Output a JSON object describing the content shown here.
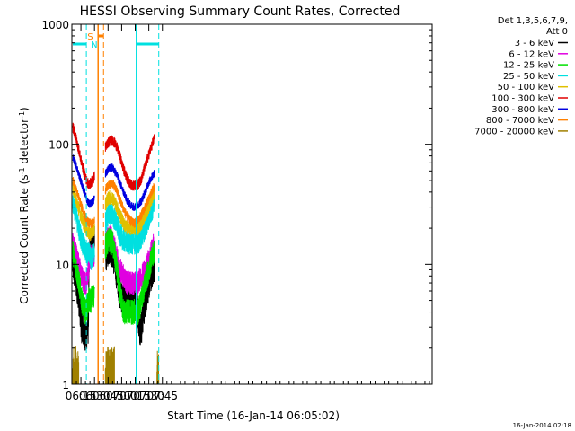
{
  "chart_data": {
    "type": "line",
    "title": "HESSI Observing Summary Count Rates, Corrected",
    "xlabel": "Start Time (16-Jan-14 06:05:02)",
    "ylabel_main": "Corrected Count Rate (s",
    "ylabel_exp1": "-1",
    "ylabel_mid": " detector",
    "ylabel_exp2": "-1",
    "ylabel_end": ")",
    "yscale": "log",
    "ylim": [
      1,
      1000
    ],
    "xlim": [
      365,
      763
    ],
    "xticks": [
      {
        "t": 375,
        "label": "06:15"
      },
      {
        "t": 390,
        "label": "06:30"
      },
      {
        "t": 405,
        "label": "06:45"
      },
      {
        "t": 420,
        "label": "07:00"
      },
      {
        "t": 435,
        "label": "07:15"
      },
      {
        "t": 450,
        "label": "07:30"
      },
      {
        "t": 465,
        "label": "07:45"
      }
    ],
    "yticks": [
      {
        "v": 1,
        "label": "1"
      },
      {
        "v": 10,
        "label": "10"
      },
      {
        "v": 100,
        "label": "100"
      },
      {
        "v": 1000,
        "label": "1000"
      }
    ],
    "legend_header": [
      "Det 1,3,5,6,7,9,",
      "Att 0"
    ],
    "legend_position": "right",
    "series": [
      {
        "name": "3 - 6 keV",
        "color": "#000000",
        "noise": 0.3,
        "points": [
          [
            366,
            10
          ],
          [
            372,
            6
          ],
          [
            376,
            3
          ],
          [
            380,
            2.5
          ],
          [
            383,
            3
          ],
          [
            384.5,
            12
          ],
          [
            386,
            15
          ],
          [
            388,
            14
          ],
          [
            389,
            15
          ],
          [
            390,
            15
          ]
        ],
        "points2": [
          [
            402,
            12
          ],
          [
            406,
            14
          ],
          [
            410,
            13
          ],
          [
            414,
            9
          ],
          [
            418,
            6
          ],
          [
            422,
            5
          ],
          [
            426,
            5
          ],
          [
            430,
            5
          ],
          [
            434,
            5
          ],
          [
            436,
            5
          ],
          [
            438,
            4
          ],
          [
            440,
            3
          ],
          [
            442,
            3
          ],
          [
            444,
            4
          ],
          [
            448,
            6
          ],
          [
            452,
            8
          ],
          [
            456,
            10
          ]
        ]
      },
      {
        "name": "6 - 12 keV",
        "color": "#e000e0",
        "noise": 0.2,
        "points": [
          [
            366,
            15
          ],
          [
            370,
            12
          ],
          [
            374,
            9
          ],
          [
            378,
            7
          ],
          [
            381,
            7
          ],
          [
            384,
            10
          ],
          [
            386,
            12
          ],
          [
            388,
            12
          ],
          [
            390,
            12
          ]
        ],
        "points2": [
          [
            402,
            15
          ],
          [
            406,
            17
          ],
          [
            410,
            16
          ],
          [
            414,
            12
          ],
          [
            418,
            9
          ],
          [
            422,
            8
          ],
          [
            426,
            7
          ],
          [
            430,
            7
          ],
          [
            434,
            7
          ],
          [
            438,
            7
          ],
          [
            442,
            8
          ],
          [
            446,
            9
          ],
          [
            450,
            11
          ],
          [
            456,
            15
          ]
        ]
      },
      {
        "name": "12 - 25 keV",
        "color": "#00e000",
        "noise": 0.22,
        "points": [
          [
            366,
            13
          ],
          [
            370,
            9
          ],
          [
            373,
            7
          ],
          [
            376,
            5
          ],
          [
            380,
            4
          ],
          [
            382,
            4.5
          ],
          [
            384,
            5
          ],
          [
            386,
            5
          ],
          [
            388,
            5.5
          ],
          [
            390,
            5.5
          ]
        ],
        "points2": [
          [
            402,
            14
          ],
          [
            406,
            16
          ],
          [
            410,
            15
          ],
          [
            414,
            10
          ],
          [
            418,
            6
          ],
          [
            422,
            4
          ],
          [
            426,
            4
          ],
          [
            430,
            4
          ],
          [
            434,
            4
          ],
          [
            438,
            4
          ],
          [
            442,
            5
          ],
          [
            446,
            7
          ],
          [
            450,
            9
          ],
          [
            456,
            13
          ]
        ]
      },
      {
        "name": "25 - 50 keV",
        "color": "#00e0e0",
        "noise": 0.2,
        "points": [
          [
            366,
            34
          ],
          [
            370,
            25
          ],
          [
            374,
            18
          ],
          [
            378,
            14
          ],
          [
            382,
            12
          ],
          [
            384,
            13
          ],
          [
            386,
            11
          ],
          [
            388,
            12
          ],
          [
            390,
            13
          ]
        ],
        "points2": [
          [
            402,
            22
          ],
          [
            406,
            27
          ],
          [
            410,
            26
          ],
          [
            414,
            22
          ],
          [
            418,
            18
          ],
          [
            422,
            16
          ],
          [
            426,
            15
          ],
          [
            430,
            15
          ],
          [
            434,
            15
          ],
          [
            438,
            15
          ],
          [
            442,
            17
          ],
          [
            446,
            20
          ],
          [
            450,
            24
          ],
          [
            456,
            33
          ]
        ]
      },
      {
        "name": "50 - 100 keV",
        "color": "#e0c000",
        "noise": 0.12,
        "points": [
          [
            366,
            45
          ],
          [
            370,
            34
          ],
          [
            374,
            27
          ],
          [
            378,
            22
          ],
          [
            382,
            19
          ],
          [
            384,
            18
          ],
          [
            386,
            18
          ],
          [
            388,
            19
          ],
          [
            390,
            19
          ]
        ],
        "points2": [
          [
            402,
            32
          ],
          [
            406,
            36
          ],
          [
            410,
            36
          ],
          [
            414,
            31
          ],
          [
            418,
            26
          ],
          [
            422,
            22
          ],
          [
            426,
            20
          ],
          [
            430,
            20
          ],
          [
            434,
            20
          ],
          [
            438,
            20
          ],
          [
            442,
            22
          ],
          [
            446,
            26
          ],
          [
            450,
            30
          ],
          [
            456,
            40
          ]
        ]
      },
      {
        "name": "100 - 300 keV",
        "color": "#e00000",
        "noise": 0.09,
        "points": [
          [
            366,
            140
          ],
          [
            370,
            110
          ],
          [
            374,
            80
          ],
          [
            378,
            60
          ],
          [
            382,
            48
          ],
          [
            384,
            46
          ],
          [
            386,
            48
          ],
          [
            388,
            50
          ],
          [
            390,
            55
          ]
        ],
        "points2": [
          [
            402,
            95
          ],
          [
            406,
            105
          ],
          [
            410,
            108
          ],
          [
            414,
            98
          ],
          [
            418,
            80
          ],
          [
            422,
            62
          ],
          [
            426,
            52
          ],
          [
            430,
            46
          ],
          [
            434,
            45
          ],
          [
            438,
            46
          ],
          [
            442,
            52
          ],
          [
            446,
            66
          ],
          [
            450,
            82
          ],
          [
            456,
            112
          ]
        ]
      },
      {
        "name": "300 - 800 keV",
        "color": "#0000e0",
        "noise": 0.07,
        "points": [
          [
            366,
            78
          ],
          [
            370,
            66
          ],
          [
            374,
            52
          ],
          [
            378,
            42
          ],
          [
            382,
            34
          ],
          [
            384,
            32
          ],
          [
            386,
            32
          ],
          [
            388,
            33
          ],
          [
            390,
            35
          ]
        ],
        "points2": [
          [
            402,
            57
          ],
          [
            406,
            63
          ],
          [
            410,
            64
          ],
          [
            414,
            57
          ],
          [
            418,
            48
          ],
          [
            422,
            40
          ],
          [
            426,
            34
          ],
          [
            430,
            31
          ],
          [
            434,
            30
          ],
          [
            438,
            31
          ],
          [
            442,
            34
          ],
          [
            446,
            40
          ],
          [
            450,
            48
          ],
          [
            456,
            58
          ]
        ]
      },
      {
        "name": "800 - 7000 keV",
        "color": "#ff8000",
        "noise": 0.08,
        "points": [
          [
            366,
            50
          ],
          [
            370,
            42
          ],
          [
            374,
            33
          ],
          [
            378,
            27
          ],
          [
            382,
            23
          ],
          [
            384,
            22
          ],
          [
            386,
            22
          ],
          [
            388,
            22
          ],
          [
            390,
            23
          ]
        ],
        "points2": [
          [
            402,
            42
          ],
          [
            406,
            46
          ],
          [
            410,
            47
          ],
          [
            414,
            42
          ],
          [
            418,
            35
          ],
          [
            422,
            29
          ],
          [
            426,
            25
          ],
          [
            430,
            23
          ],
          [
            434,
            22
          ],
          [
            438,
            23
          ],
          [
            442,
            26
          ],
          [
            446,
            30
          ],
          [
            450,
            35
          ],
          [
            456,
            45
          ]
        ]
      },
      {
        "name": "7000 - 20000 keV",
        "color": "#a08000",
        "noise": 0,
        "points": [],
        "points2": []
      }
    ],
    "annotations": {
      "N_label": "N",
      "S_label": "S",
      "N_color": "#00e0e0",
      "S_color": "#ff8000",
      "N_intervals": [
        [
          366,
          381
        ],
        [
          436,
          461
        ]
      ],
      "S_interval": [
        394,
        400
      ]
    },
    "footer_date": "16-Jan-2014 02:18"
  }
}
